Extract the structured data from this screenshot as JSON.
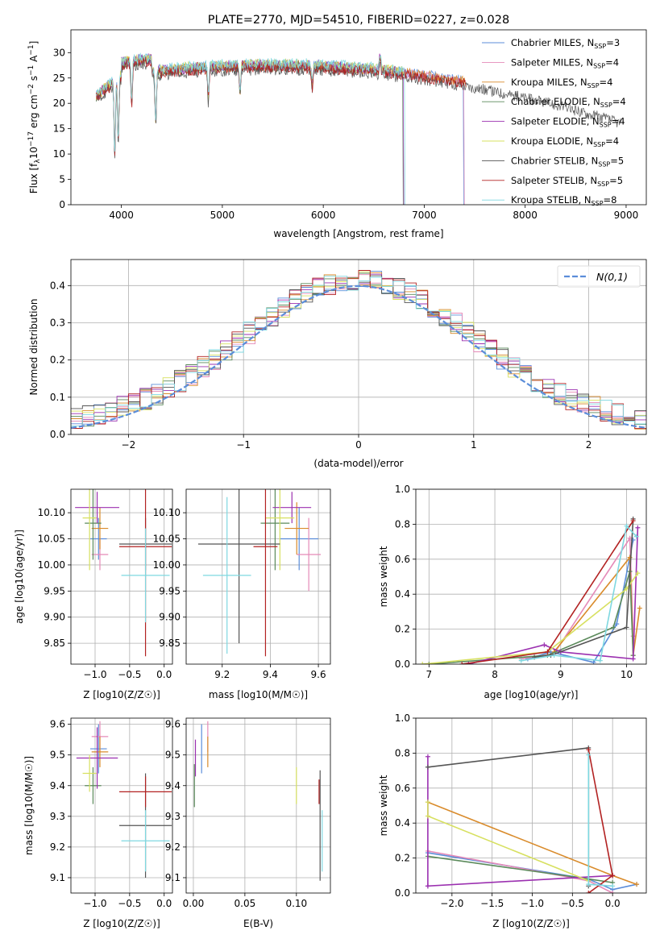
{
  "chart_data": [
    {
      "id": "spectrum",
      "type": "line",
      "title": "PLATE=2770, MJD=54510, FIBERID=0227, z=0.028",
      "xlabel": "wavelength [Angstrom, rest frame]",
      "ylabel": "Flux [f_λ 10^-17 erg cm^-2 s^-1 A^-1]",
      "xlim": [
        3500,
        9200
      ],
      "ylim": [
        0,
        34.5
      ],
      "xticks": [
        4000,
        5000,
        6000,
        7000,
        8000,
        9000
      ],
      "yticks": [
        0,
        5,
        10,
        15,
        20,
        25,
        30
      ],
      "grid": false,
      "legend_position": "top-right",
      "series": [
        {
          "name": "Chabrier MILES, N_SSP=3",
          "color": "#5b8dd9",
          "x_range": [
            3750,
            7400
          ],
          "level": 26.5,
          "dropout_at": 7390
        },
        {
          "name": "Salpeter MILES, N_SSP=4",
          "color": "#e58ab8",
          "x_range": [
            3750,
            7400
          ],
          "level": 26.3,
          "dropout_at": 7395
        },
        {
          "name": "Kroupa MILES, N_SSP=4",
          "color": "#d98b2b",
          "x_range": [
            3750,
            7420
          ],
          "level": 26.4,
          "dropout_at": 7420
        },
        {
          "name": "Chabrier ELODIE, N_SSP=4",
          "color": "#5b8a5b",
          "x_range": [
            3750,
            6800
          ],
          "level": 26.2,
          "dropout_at": 6790
        },
        {
          "name": "Salpeter ELODIE, N_SSP=4",
          "color": "#9b30b0",
          "x_range": [
            3750,
            6800
          ],
          "level": 26.5,
          "dropout_at": 6795
        },
        {
          "name": "Kroupa ELODIE, N_SSP=4",
          "color": "#d7e060",
          "x_range": [
            3750,
            6800
          ],
          "level": 26.6,
          "dropout_at": 6800
        },
        {
          "name": "Chabrier STELIB, N_SSP=5",
          "color": "#555555",
          "x_range": [
            3750,
            8950
          ],
          "level": 25.5,
          "dropout_at": null
        },
        {
          "name": "Salpeter STELIB, N_SSP=5",
          "color": "#b22222",
          "x_range": [
            3750,
            7420
          ],
          "level": 26.0,
          "dropout_at": 7420
        },
        {
          "name": "Kroupa STELIB, N_SSP=8",
          "color": "#7fd8e0",
          "x_range": [
            3750,
            6820
          ],
          "level": 26.8,
          "dropout_at": 6810
        }
      ]
    },
    {
      "id": "residuals",
      "type": "line",
      "xlabel": "(data-model)/error",
      "ylabel": "Normed distribution",
      "xlim": [
        -2.5,
        2.5
      ],
      "ylim": [
        0,
        0.47
      ],
      "xticks": [
        -2,
        -1,
        0,
        1,
        2
      ],
      "yticks": [
        0.0,
        0.1,
        0.2,
        0.3,
        0.4
      ],
      "grid": true,
      "legend_position": "top-right",
      "reference": {
        "name": "N(0,1)",
        "mu": 0,
        "sigma": 1,
        "color": "#5b8dd9"
      }
    },
    {
      "id": "age_vs_Z",
      "type": "scatter",
      "xlabel": "Z [log10(Z/Z☉)]",
      "ylabel": "age [log10(age/yr)]",
      "xlim": [
        -1.35,
        0.12
      ],
      "ylim": [
        9.81,
        10.145
      ],
      "xticks": [
        -1.0,
        -0.5,
        0.0
      ],
      "yticks": [
        9.85,
        9.9,
        9.95,
        10.0,
        10.05,
        10.1
      ],
      "grid": true,
      "points": [
        {
          "color": "#5b8dd9",
          "x": -0.95,
          "xerr": 0.12,
          "y": 10.05,
          "yerr": 0.04
        },
        {
          "color": "#e58ab8",
          "x": -0.93,
          "xerr": 0.12,
          "y": 10.02,
          "yerr": 0.03
        },
        {
          "color": "#d98b2b",
          "x": -0.93,
          "xerr": 0.12,
          "y": 10.07,
          "yerr": 0.04
        },
        {
          "color": "#5b8a5b",
          "x": -1.03,
          "xerr": 0.12,
          "y": 10.08,
          "yerr": 0.07
        },
        {
          "color": "#9b30b0",
          "x": -0.97,
          "xerr": 0.32,
          "y": 10.11,
          "yerr": 0.03
        },
        {
          "color": "#d7e060",
          "x": -1.08,
          "xerr": 0.1,
          "y": 10.09,
          "yerr": 0.1
        },
        {
          "color": "#555555",
          "x": -0.27,
          "xerr": 0.38,
          "y": 10.04,
          "yerr": 0.05
        },
        {
          "color": "#b22222",
          "x": -0.27,
          "xerr": 0.38,
          "y": 10.035,
          "yerr": 0.21
        },
        {
          "color": "#7fd8e0",
          "x": -0.27,
          "xerr": 0.35,
          "y": 9.98,
          "yerr": 0.09
        }
      ]
    },
    {
      "id": "age_vs_mass",
      "type": "scatter",
      "xlabel": "mass [log10(M/M☉)]",
      "ylabel": "",
      "xlim": [
        9.05,
        9.65
      ],
      "ylim": [
        9.81,
        10.145
      ],
      "xticks": [
        9.2,
        9.4,
        9.6
      ],
      "yticks": [
        9.85,
        9.9,
        9.95,
        10.0,
        10.05,
        10.1
      ],
      "grid": true,
      "points": [
        {
          "color": "#5b8dd9",
          "x": 9.52,
          "xerr": 0.08,
          "y": 10.05,
          "yerr": 0.06
        },
        {
          "color": "#e58ab8",
          "x": 9.56,
          "xerr": 0.05,
          "y": 10.02,
          "yerr": 0.07
        },
        {
          "color": "#d98b2b",
          "x": 9.51,
          "xerr": 0.05,
          "y": 10.07,
          "yerr": 0.05
        },
        {
          "color": "#5b8a5b",
          "x": 9.42,
          "xerr": 0.06,
          "y": 10.08,
          "yerr": 0.09
        },
        {
          "color": "#9b30b0",
          "x": 9.49,
          "xerr": 0.08,
          "y": 10.11,
          "yerr": 0.03
        },
        {
          "color": "#d7e060",
          "x": 9.44,
          "xerr": 0.06,
          "y": 10.09,
          "yerr": 0.1
        },
        {
          "color": "#555555",
          "x": 9.27,
          "xerr": 0.17,
          "y": 10.04,
          "yerr": 0.19
        },
        {
          "color": "#b22222",
          "x": 9.38,
          "xerr": 0.05,
          "y": 10.035,
          "yerr": 0.21
        },
        {
          "color": "#7fd8e0",
          "x": 9.22,
          "xerr": 0.1,
          "y": 9.98,
          "yerr": 0.15
        }
      ]
    },
    {
      "id": "mass_vs_Z",
      "type": "scatter",
      "xlabel": "Z [log10(Z/Z☉)]",
      "ylabel": "mass [log10(M/M☉)]",
      "xlim": [
        -1.35,
        0.12
      ],
      "ylim": [
        9.05,
        9.62
      ],
      "xticks": [
        -1.0,
        -0.5,
        0.0
      ],
      "yticks": [
        9.1,
        9.2,
        9.3,
        9.4,
        9.5,
        9.6
      ],
      "grid": true,
      "points": [
        {
          "color": "#5b8dd9",
          "x": -0.95,
          "xerr": 0.12,
          "y": 9.52,
          "yerr": 0.08
        },
        {
          "color": "#e58ab8",
          "x": -0.93,
          "xerr": 0.12,
          "y": 9.56,
          "yerr": 0.05
        },
        {
          "color": "#d98b2b",
          "x": -0.93,
          "xerr": 0.12,
          "y": 9.51,
          "yerr": 0.05
        },
        {
          "color": "#5b8a5b",
          "x": -1.03,
          "xerr": 0.12,
          "y": 9.4,
          "yerr": 0.06
        },
        {
          "color": "#9b30b0",
          "x": -0.97,
          "xerr": 0.3,
          "y": 9.49,
          "yerr": 0.1
        },
        {
          "color": "#d7e060",
          "x": -1.08,
          "xerr": 0.1,
          "y": 9.44,
          "yerr": 0.06
        },
        {
          "color": "#555555",
          "x": -0.27,
          "xerr": 0.38,
          "y": 9.27,
          "yerr": 0.17
        },
        {
          "color": "#b22222",
          "x": -0.27,
          "xerr": 0.38,
          "y": 9.38,
          "yerr": 0.05
        },
        {
          "color": "#7fd8e0",
          "x": -0.27,
          "xerr": 0.35,
          "y": 9.22,
          "yerr": 0.1
        }
      ]
    },
    {
      "id": "mass_vs_ebv",
      "type": "scatter",
      "xlabel": "E(B-V)",
      "ylabel": "",
      "xlim": [
        -0.007,
        0.133
      ],
      "ylim": [
        9.05,
        9.62
      ],
      "xticks": [
        0.0,
        0.05,
        0.1
      ],
      "yticks": [
        9.1,
        9.2,
        9.3,
        9.4,
        9.5,
        9.6
      ],
      "grid": true,
      "points": [
        {
          "color": "#5b8dd9",
          "x": 0.008,
          "y": 9.52,
          "yerr": 0.08
        },
        {
          "color": "#e58ab8",
          "x": 0.014,
          "y": 9.56,
          "yerr": 0.05
        },
        {
          "color": "#d98b2b",
          "x": 0.014,
          "y": 9.51,
          "yerr": 0.05
        },
        {
          "color": "#5b8a5b",
          "x": 0.001,
          "y": 9.4,
          "yerr": 0.07
        },
        {
          "color": "#9b30b0",
          "x": 0.002,
          "y": 9.49,
          "yerr": 0.06
        },
        {
          "color": "#d7e060",
          "x": 0.1,
          "y": 9.4,
          "yerr": 0.06
        },
        {
          "color": "#555555",
          "x": 0.123,
          "y": 9.27,
          "yerr": 0.18
        },
        {
          "color": "#b22222",
          "x": 0.122,
          "y": 9.38,
          "yerr": 0.04
        },
        {
          "color": "#7fd8e0",
          "x": 0.125,
          "y": 9.22,
          "yerr": 0.1
        }
      ]
    },
    {
      "id": "weight_vs_age",
      "type": "line",
      "xlabel": "age [log10(age/yr)]",
      "ylabel": "mass weight",
      "xlim": [
        6.8,
        10.3
      ],
      "ylim": [
        0,
        1.0
      ],
      "xticks": [
        7,
        8,
        9,
        10
      ],
      "yticks": [
        0.0,
        0.2,
        0.4,
        0.6,
        0.8,
        1.0
      ],
      "grid": true,
      "series": [
        {
          "color": "#5b8dd9",
          "points": [
            [
              8.5,
              0.03
            ],
            [
              8.85,
              0.07
            ],
            [
              9.5,
              0.01
            ],
            [
              9.85,
              0.23
            ],
            [
              10.1,
              0.71
            ]
          ]
        },
        {
          "color": "#e58ab8",
          "points": [
            [
              8.4,
              0.03
            ],
            [
              8.9,
              0.06
            ],
            [
              10.05,
              0.72
            ],
            [
              10.1,
              0.16
            ]
          ]
        },
        {
          "color": "#d98b2b",
          "points": [
            [
              8.9,
              0.07
            ],
            [
              10.05,
              0.61
            ],
            [
              10.1,
              0.05
            ],
            [
              10.2,
              0.32
            ]
          ]
        },
        {
          "color": "#5b8a5b",
          "points": [
            [
              7.0,
              0.0
            ],
            [
              8.8,
              0.05
            ],
            [
              9.8,
              0.21
            ],
            [
              10.05,
              0.53
            ],
            [
              10.1,
              0.05
            ]
          ]
        },
        {
          "color": "#9b30b0",
          "points": [
            [
              7.6,
              0.0
            ],
            [
              8.75,
              0.11
            ],
            [
              9.0,
              0.07
            ],
            [
              10.1,
              0.03
            ],
            [
              10.17,
              0.78
            ]
          ]
        },
        {
          "color": "#d7e060",
          "points": [
            [
              6.9,
              0.0
            ],
            [
              8.8,
              0.07
            ],
            [
              10.0,
              0.43
            ],
            [
              10.17,
              0.52
            ]
          ]
        },
        {
          "color": "#555555",
          "points": [
            [
              8.6,
              0.04
            ],
            [
              8.85,
              0.05
            ],
            [
              10.0,
              0.21
            ],
            [
              10.1,
              0.83
            ]
          ]
        },
        {
          "color": "#b22222",
          "points": [
            [
              7.5,
              0.0
            ],
            [
              8.8,
              0.07
            ],
            [
              10.1,
              0.82
            ]
          ]
        },
        {
          "color": "#7fd8e0",
          "points": [
            [
              8.4,
              0.02
            ],
            [
              8.9,
              0.05
            ],
            [
              9.6,
              0.02
            ],
            [
              10.0,
              0.79
            ],
            [
              10.15,
              0.73
            ]
          ]
        }
      ]
    },
    {
      "id": "weight_vs_Z",
      "type": "line",
      "xlabel": "Z [log10(Z/Z☉)]",
      "ylabel": "mass weight",
      "xlim": [
        -2.45,
        0.42
      ],
      "ylim": [
        0,
        1.0
      ],
      "xticks": [
        -2.0,
        -1.5,
        -1.0,
        -0.5,
        0.0
      ],
      "yticks": [
        0.0,
        0.2,
        0.4,
        0.6,
        0.8,
        1.0
      ],
      "grid": true,
      "series": [
        {
          "color": "#5b8dd9",
          "points": [
            [
              -2.3,
              0.23
            ],
            [
              -0.3,
              0.08
            ],
            [
              0.0,
              0.02
            ],
            [
              0.3,
              0.05
            ]
          ]
        },
        {
          "color": "#e58ab8",
          "points": [
            [
              -2.3,
              0.24
            ],
            [
              -0.3,
              0.07
            ],
            [
              0.0,
              0.0
            ]
          ]
        },
        {
          "color": "#d98b2b",
          "points": [
            [
              -2.3,
              0.52
            ],
            [
              0.0,
              0.1
            ],
            [
              0.3,
              0.05
            ]
          ]
        },
        {
          "color": "#5b8a5b",
          "points": [
            [
              -2.3,
              0.21
            ],
            [
              -0.3,
              0.08
            ],
            [
              0.0,
              0.06
            ]
          ]
        },
        {
          "color": "#9b30b0",
          "points": [
            [
              -2.3,
              0.04
            ],
            [
              -2.3,
              0.78
            ],
            [
              -2.3,
              0.04
            ],
            [
              0.0,
              0.1
            ]
          ]
        },
        {
          "color": "#d7e060",
          "points": [
            [
              -2.3,
              0.52
            ],
            [
              -2.3,
              0.44
            ],
            [
              -0.3,
              0.07
            ]
          ]
        },
        {
          "color": "#555555",
          "points": [
            [
              -2.3,
              0.72
            ],
            [
              -0.3,
              0.83
            ],
            [
              -0.3,
              0.04
            ]
          ]
        },
        {
          "color": "#b22222",
          "points": [
            [
              -0.3,
              0.82
            ],
            [
              0.0,
              0.1
            ],
            [
              -0.3,
              0.0
            ]
          ]
        },
        {
          "color": "#7fd8e0",
          "points": [
            [
              -0.3,
              0.79
            ],
            [
              -0.3,
              0.05
            ],
            [
              0.0,
              0.04
            ]
          ]
        }
      ]
    }
  ],
  "legend_n01": "N(0,1)"
}
